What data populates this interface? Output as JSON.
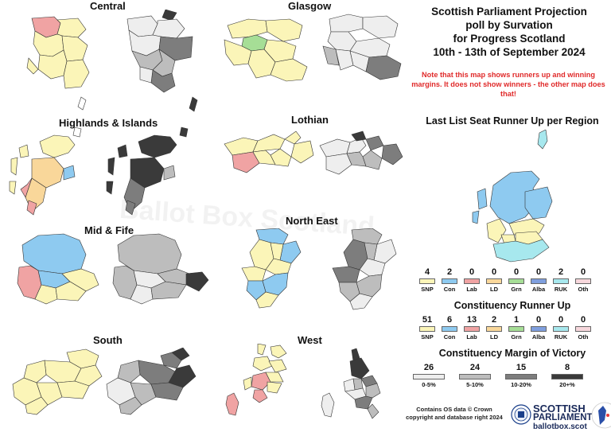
{
  "title_lines": [
    "Scottish Parliament Projection",
    "poll by Survation",
    "for Progress Scotland",
    "10th - 13th of September 2024"
  ],
  "note": "Note that this map shows runners up and winning margins. It does not show winners - the other map does that!",
  "watermark": "Ballot Box Scotland",
  "regions": {
    "central": "Central",
    "glasgow": "Glasgow",
    "highlands": "Highlands & Islands",
    "lothian": "Lothian",
    "midfife": "Mid & Fife",
    "northeast": "North East",
    "south": "South",
    "west": "West"
  },
  "list_runner_up": {
    "title": "Last List Seat Runner Up per Region",
    "parties": [
      {
        "label": "SNP",
        "value": "4",
        "color": "#fbf5b8"
      },
      {
        "label": "Con",
        "value": "2",
        "color": "#8ecaf0"
      },
      {
        "label": "Lab",
        "value": "0",
        "color": "#f0a3a3"
      },
      {
        "label": "LD",
        "value": "0",
        "color": "#f9d79a"
      },
      {
        "label": "Grn",
        "value": "0",
        "color": "#a6de96"
      },
      {
        "label": "Alba",
        "value": "0",
        "color": "#7f9fde"
      },
      {
        "label": "RUK",
        "value": "2",
        "color": "#a7e8ee"
      },
      {
        "label": "Oth",
        "value": "0",
        "color": "#f7d7dc"
      }
    ]
  },
  "constituency_runner_up": {
    "title": "Constituency Runner Up",
    "parties": [
      {
        "label": "SNP",
        "value": "51",
        "color": "#fbf5b8"
      },
      {
        "label": "Con",
        "value": "6",
        "color": "#8ecaf0"
      },
      {
        "label": "Lab",
        "value": "13",
        "color": "#f0a3a3"
      },
      {
        "label": "LD",
        "value": "2",
        "color": "#f9d79a"
      },
      {
        "label": "Grn",
        "value": "1",
        "color": "#a6de96"
      },
      {
        "label": "Alba",
        "value": "0",
        "color": "#7f9fde"
      },
      {
        "label": "RUK",
        "value": "0",
        "color": "#a7e8ee"
      },
      {
        "label": "Oth",
        "value": "0",
        "color": "#f7d7dc"
      }
    ]
  },
  "margin": {
    "title": "Constituency Margin of Victory",
    "bands": [
      {
        "label": "0-5%",
        "value": "26",
        "color": "#eeeeee"
      },
      {
        "label": "5-10%",
        "value": "24",
        "color": "#bdbdbd"
      },
      {
        "label": "10-20%",
        "value": "15",
        "color": "#7d7d7d"
      },
      {
        "label": "20+%",
        "value": "8",
        "color": "#3a3a3a"
      }
    ]
  },
  "copyright": "Contains OS data © Crown copyright and database right 2024",
  "logo": {
    "line1": "SCOTTISH",
    "line2": "PARLIAMENT",
    "line3": "ballotbox.scot",
    "ring": "BALLOT BOX SCOTLAND"
  },
  "colors": {
    "snp": "#fbf5b8",
    "con": "#8ecaf0",
    "lab": "#f0a3a3",
    "ld": "#f9d79a",
    "grn": "#a6de96",
    "ruk": "#a7e8ee",
    "m1": "#eeeeee",
    "m2": "#bdbdbd",
    "m3": "#7d7d7d",
    "m4": "#3a3a3a"
  }
}
